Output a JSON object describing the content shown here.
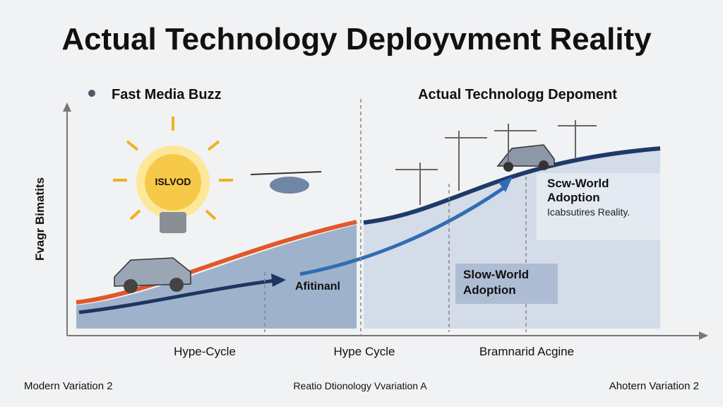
{
  "title": "Actual Technology Deployvment Reality",
  "left_panel": {
    "heading": "Fast Media Buzz",
    "bulb_label": "ISLVOD",
    "curve_label": "Afitinanl"
  },
  "right_panel": {
    "heading": "Actual Technologg Depoment",
    "box_top": {
      "title": "Scw-World Adoption",
      "text": "Icabsutires Reality."
    },
    "box_bottom": {
      "title": "Slow-World Adoption"
    }
  },
  "y_axis_label": "Fvagr Bimatits",
  "x_labels": [
    "Hype-Cycle",
    "Hype Cycle",
    "Bramnarid Acgine"
  ],
  "footer": [
    "Modern Variation 2",
    "Reatio Dtionology Vvariation A",
    "Ahotern Variation 2"
  ]
}
